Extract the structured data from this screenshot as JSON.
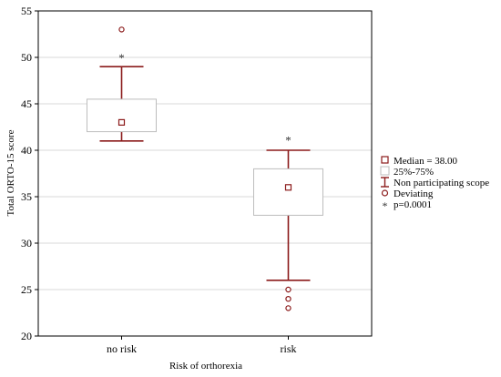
{
  "chart_data": {
    "type": "box",
    "xlabel": "Risk of orthorexia",
    "ylabel": "Total ORTO-15 score",
    "ylim": [
      20,
      55
    ],
    "yticks": [
      20,
      25,
      30,
      35,
      40,
      45,
      50,
      55
    ],
    "grid": true,
    "legend_position": "right",
    "colors": {
      "accent": "#8b1a1a",
      "box_fill": "#ffffff",
      "box_stroke": "#bdbdbd",
      "grid": "#d9d9d9"
    },
    "groups": [
      {
        "category": "no risk",
        "median": 43,
        "q1": 42,
        "q3": 45.5,
        "whisker_low": 41,
        "whisker_high": 49,
        "outliers": [
          53
        ],
        "star_y": 50.2
      },
      {
        "category": "risk",
        "median": 36,
        "q1": 33,
        "q3": 38,
        "whisker_low": 26,
        "whisker_high": 40,
        "outliers": [
          25,
          24,
          23
        ],
        "star_y": 41.3
      }
    ],
    "legend": [
      {
        "symbol": "square",
        "label": "Median = 38.00"
      },
      {
        "symbol": "box",
        "label": "25%-75%"
      },
      {
        "symbol": "whisker",
        "label": "Non participating scope"
      },
      {
        "symbol": "circle",
        "label": "Deviating"
      },
      {
        "symbol": "star",
        "label": "p=0.0001"
      }
    ]
  }
}
